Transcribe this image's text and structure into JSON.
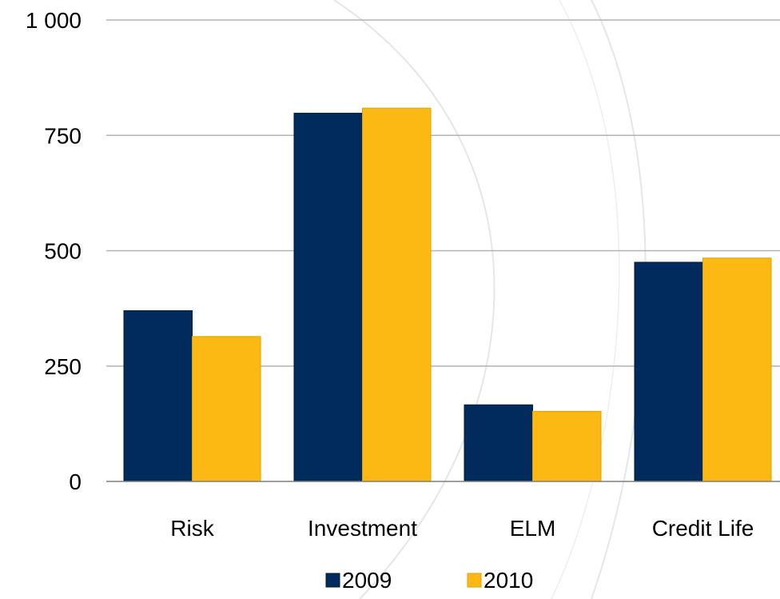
{
  "chart_data": {
    "type": "bar",
    "title": "",
    "xlabel": "",
    "ylabel": "",
    "categories": [
      "Risk",
      "Investment",
      "ELM",
      "Credit Life"
    ],
    "series": [
      {
        "name": "2009",
        "values": [
          370,
          798,
          166,
          475
        ],
        "color": "#002B5C"
      },
      {
        "name": "2010",
        "values": [
          314,
          809,
          152,
          484
        ],
        "color": "#FDB913"
      }
    ],
    "ylim": [
      0,
      1000
    ],
    "yticks": [
      0,
      250,
      500,
      750,
      1000
    ],
    "ytick_labels": [
      "0",
      "250",
      "500",
      "750",
      "1 000"
    ],
    "grid": true,
    "legend": "bottom"
  }
}
